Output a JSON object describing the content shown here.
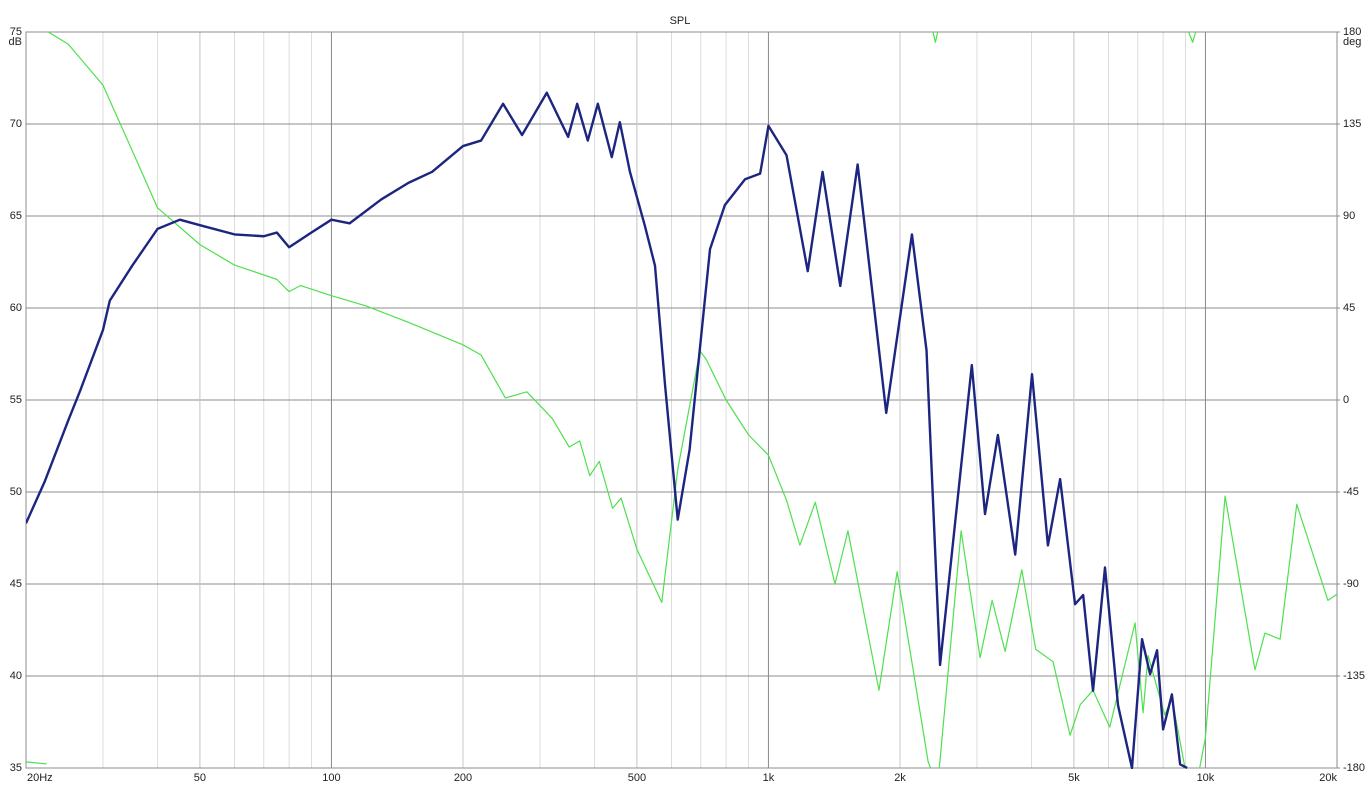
{
  "chart_data": {
    "type": "line",
    "title": "SPL",
    "xscale": "log",
    "xlim": [
      20,
      20000
    ],
    "xticks": [
      {
        "value": 20,
        "label": "20Hz"
      },
      50,
      100,
      200,
      500,
      {
        "value": 1000,
        "label": "1k"
      },
      {
        "value": 2000,
        "label": "2k"
      },
      {
        "value": 5000,
        "label": "5k"
      },
      {
        "value": 10000,
        "label": "10k"
      },
      {
        "value": 20000,
        "label": "20k"
      }
    ],
    "ylim": [
      35,
      75
    ],
    "yticks": [
      35,
      40,
      45,
      50,
      55,
      60,
      65,
      70,
      75
    ],
    "y_unit": "dB",
    "y2lim": [
      -180,
      180
    ],
    "y2ticks": [
      -180,
      -135,
      -90,
      -45,
      0,
      45,
      90,
      135,
      180
    ],
    "y2_unit": "deg",
    "grid": true,
    "minor_grid": true,
    "series": [
      {
        "color": "#1c2580",
        "x": [
          20,
          22.1,
          25,
          26.6,
          30,
          31.1,
          35,
          40,
          45,
          50,
          60,
          70,
          75,
          80,
          90,
          100,
          110,
          130,
          150,
          170,
          200,
          220,
          247,
          273,
          311,
          348,
          365,
          386,
          407,
          438,
          457,
          482,
          521,
          550,
          580,
          620,
          660,
          735,
          795,
          884,
          957,
          1000,
          1100,
          1230,
          1330,
          1460,
          1600,
          1860,
          2130,
          2300,
          2470,
          2920,
          3130,
          3350,
          3670,
          4010,
          4360,
          4650,
          5030,
          5250,
          5530,
          5890,
          6310,
          6790,
          7160,
          7470,
          7750,
          8000,
          8380,
          8750,
          9080
        ],
        "values": [
          48.3,
          50.6,
          53.9,
          55.5,
          58.8,
          60.4,
          62.3,
          64.3,
          64.8,
          64.5,
          64.0,
          63.9,
          64.1,
          63.3,
          64.1,
          64.8,
          64.6,
          65.9,
          66.8,
          67.4,
          68.8,
          69.1,
          71.1,
          69.4,
          71.7,
          69.3,
          71.1,
          69.1,
          71.1,
          68.2,
          70.1,
          67.4,
          64.5,
          62.3,
          55.8,
          48.5,
          52.3,
          63.2,
          65.6,
          67.0,
          67.3,
          69.9,
          68.3,
          62.0,
          67.4,
          61.2,
          67.8,
          54.3,
          64.0,
          57.7,
          40.6,
          56.9,
          48.8,
          53.1,
          46.6,
          56.4,
          47.1,
          50.7,
          43.9,
          44.4,
          39.2,
          45.9,
          38.4,
          35.0,
          42.0,
          40.1,
          41.4,
          37.1,
          39.0,
          35.2,
          35.0
        ]
      },
      {
        "color": "#4ee04e",
        "axis": "y2",
        "x": [
          20,
          22.3,
          22.4,
          22.5,
          25,
          30,
          35,
          40,
          50,
          60,
          75,
          80,
          85,
          100,
          120,
          150,
          200,
          220,
          250,
          280,
          320,
          350,
          370,
          390,
          410,
          440,
          460,
          500,
          570,
          620,
          697,
          720,
          800,
          900,
          1000,
          1100,
          1180,
          1280,
          1420,
          1520,
          1790,
          1970,
          2320,
          2350,
          2365,
          2380,
          2410,
          2440,
          2450,
          2460,
          2760,
          3050,
          3250,
          3480,
          3800,
          4090,
          4480,
          4900,
          5170,
          5530,
          6040,
          6900,
          7200,
          7390,
          8070,
          8380,
          8980,
          9050,
          9150,
          9350,
          9500,
          9600,
          9700,
          10000,
          11090,
          12980,
          13680,
          14820,
          16180,
          19060,
          20000
        ],
        "values": [
          -177,
          -178,
          null,
          180,
          174,
          154,
          122,
          94,
          76,
          66,
          59,
          53,
          56,
          51,
          46,
          38,
          27,
          22,
          1,
          4,
          -9,
          -23,
          -20,
          -37,
          -30,
          -53,
          -48,
          -73,
          -99,
          -34,
          24,
          20,
          0,
          -17,
          -27,
          -49,
          -71,
          -50,
          -90,
          -64,
          -142,
          -84,
          -177,
          -180,
          null,
          180,
          175,
          180,
          null,
          -180,
          -64,
          -126,
          -98,
          -123,
          -83,
          -122,
          -128,
          -164,
          -149,
          -142,
          -160,
          -109,
          -153,
          -125,
          -154,
          -146,
          -180,
          null,
          180,
          175,
          180,
          null,
          -180,
          -165,
          -47,
          -132,
          -114,
          -117,
          -51,
          -98,
          -95
        ]
      }
    ]
  }
}
